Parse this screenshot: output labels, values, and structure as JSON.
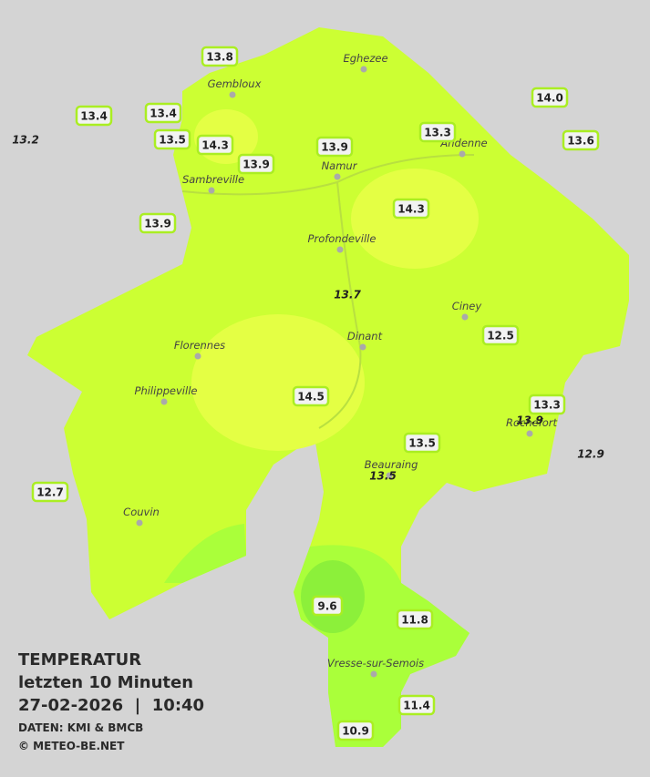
{
  "title": "TEMPERATUR",
  "subtitle": "letzten 10 Minuten",
  "datetime": "27-02-2026  |  10:40",
  "source": "DATEN: KMI & BMCB",
  "copyright": "© METEO-BE.NET",
  "cities": [
    "Eghezee",
    "Gembloux",
    "Andenne",
    "Namur",
    "Sambreville",
    "Profondeville",
    "Ciney",
    "Dinant",
    "Florennes",
    "Philippeville",
    "Beauraing",
    "Rochefort",
    "Couvin",
    "Vresse-sur-Semois"
  ],
  "stations": [
    {
      "label": "13.8",
      "italic": false
    },
    {
      "label": "13.4",
      "italic": false
    },
    {
      "label": "13.4",
      "italic": false
    },
    {
      "label": "13.2",
      "italic": true
    },
    {
      "label": "13.5",
      "italic": false
    },
    {
      "label": "14.3",
      "italic": false
    },
    {
      "label": "13.9",
      "italic": false
    },
    {
      "label": "13.9",
      "italic": false
    },
    {
      "label": "13.3",
      "italic": false
    },
    {
      "label": "14.0",
      "italic": false
    },
    {
      "label": "13.6",
      "italic": false
    },
    {
      "label": "13.9",
      "italic": false
    },
    {
      "label": "14.3",
      "italic": false
    },
    {
      "label": "13.7",
      "italic": true
    },
    {
      "label": "12.5",
      "italic": false
    },
    {
      "label": "14.5",
      "italic": false
    },
    {
      "label": "13.3",
      "italic": false
    },
    {
      "label": "13.9",
      "italic": true
    },
    {
      "label": "12.9",
      "italic": true
    },
    {
      "label": "13.5",
      "italic": false
    },
    {
      "label": "13.5",
      "italic": true
    },
    {
      "label": "12.7",
      "italic": false
    },
    {
      "label": "9.6",
      "italic": false
    },
    {
      "label": "11.8",
      "italic": false
    },
    {
      "label": "11.4",
      "italic": false
    },
    {
      "label": "10.9",
      "italic": false
    }
  ]
}
